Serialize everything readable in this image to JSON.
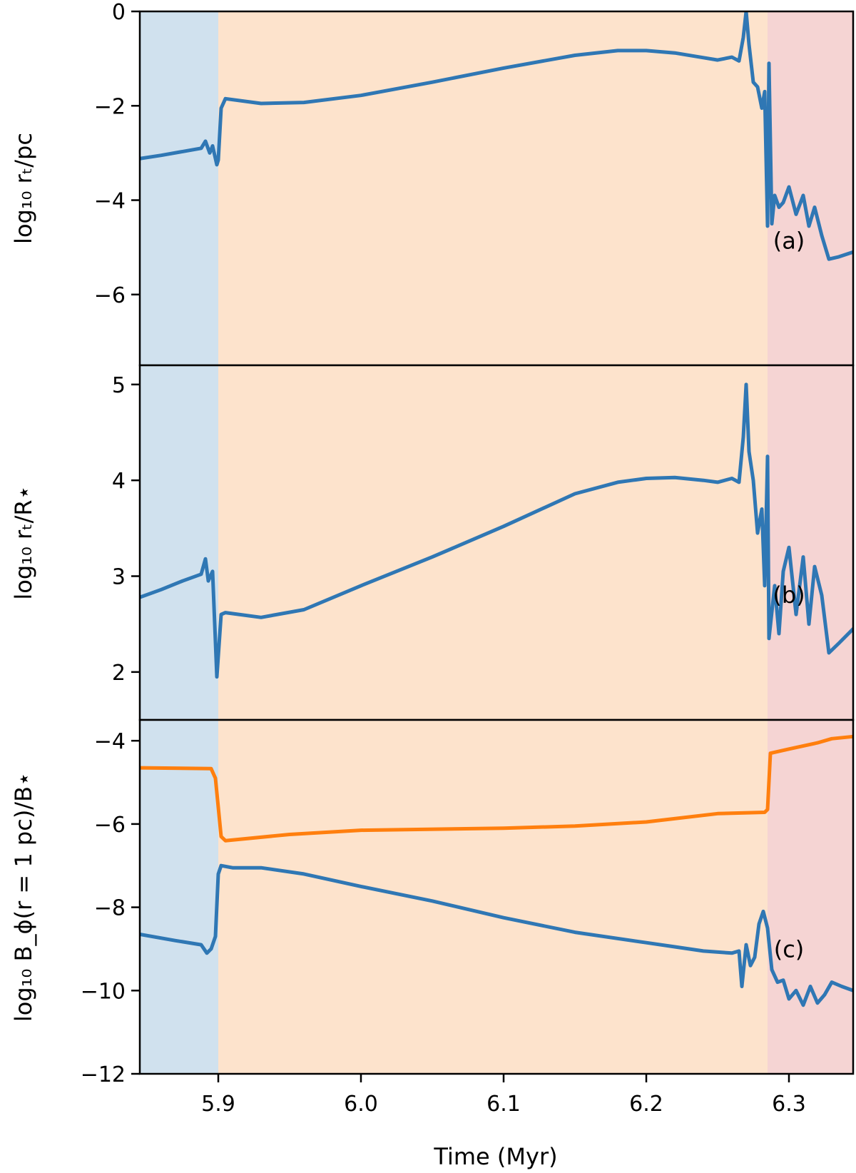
{
  "figure": {
    "xlabel": "Time (Myr)",
    "xlim": [
      5.845,
      6.345
    ],
    "xticks": [
      5.9,
      6.0,
      6.1,
      6.2,
      6.3
    ],
    "xtick_labels": [
      "5.9",
      "6.0",
      "6.1",
      "6.2",
      "6.3"
    ],
    "shaded_regions": [
      {
        "x0": 5.845,
        "x1": 5.9,
        "color": "#d0e1ee"
      },
      {
        "x0": 5.9,
        "x1": 6.285,
        "color": "#fde3cc"
      },
      {
        "x0": 6.285,
        "x1": 6.345,
        "color": "#f5d4d3"
      }
    ]
  },
  "chart_data": [
    {
      "type": "line",
      "panel_label": "(a)",
      "ylabel": "log₁₀ rₜ/pc",
      "ylim": [
        -7.5,
        0
      ],
      "yticks": [
        0,
        -2,
        -4,
        -6
      ],
      "ytick_labels": [
        "0",
        "−2",
        "−4",
        "−6"
      ],
      "series": [
        {
          "color": "#2f77b4",
          "points": [
            [
              5.845,
              -3.12
            ],
            [
              5.86,
              -3.05
            ],
            [
              5.875,
              -2.97
            ],
            [
              5.888,
              -2.9
            ],
            [
              5.891,
              -2.75
            ],
            [
              5.894,
              -3.0
            ],
            [
              5.896,
              -2.85
            ],
            [
              5.899,
              -3.25
            ],
            [
              5.9,
              -3.15
            ],
            [
              5.902,
              -2.05
            ],
            [
              5.905,
              -1.85
            ],
            [
              5.93,
              -1.95
            ],
            [
              5.96,
              -1.93
            ],
            [
              6.0,
              -1.78
            ],
            [
              6.05,
              -1.5
            ],
            [
              6.1,
              -1.2
            ],
            [
              6.15,
              -0.93
            ],
            [
              6.18,
              -0.83
            ],
            [
              6.2,
              -0.83
            ],
            [
              6.22,
              -0.88
            ],
            [
              6.24,
              -0.98
            ],
            [
              6.25,
              -1.03
            ],
            [
              6.26,
              -0.97
            ],
            [
              6.265,
              -1.05
            ],
            [
              6.268,
              -0.55
            ],
            [
              6.27,
              0.0
            ],
            [
              6.272,
              -0.7
            ],
            [
              6.275,
              -1.5
            ],
            [
              6.278,
              -1.6
            ],
            [
              6.281,
              -2.05
            ],
            [
              6.283,
              -1.7
            ],
            [
              6.285,
              -4.55
            ],
            [
              6.286,
              -1.1
            ],
            [
              6.288,
              -4.5
            ],
            [
              6.29,
              -3.9
            ],
            [
              6.293,
              -4.15
            ],
            [
              6.296,
              -4.05
            ],
            [
              6.3,
              -3.72
            ],
            [
              6.305,
              -4.3
            ],
            [
              6.31,
              -3.9
            ],
            [
              6.314,
              -4.55
            ],
            [
              6.318,
              -4.15
            ],
            [
              6.323,
              -4.75
            ],
            [
              6.328,
              -5.25
            ],
            [
              6.335,
              -5.2
            ],
            [
              6.345,
              -5.1
            ]
          ]
        }
      ]
    },
    {
      "type": "line",
      "panel_label": "(b)",
      "ylabel": "log₁₀ rₜ/R⋆",
      "ylim": [
        1.5,
        5.2
      ],
      "yticks": [
        2,
        3,
        4,
        5
      ],
      "ytick_labels": [
        "2",
        "3",
        "4",
        "5"
      ],
      "series": [
        {
          "color": "#2f77b4",
          "points": [
            [
              5.845,
              2.78
            ],
            [
              5.86,
              2.86
            ],
            [
              5.875,
              2.95
            ],
            [
              5.888,
              3.02
            ],
            [
              5.891,
              3.18
            ],
            [
              5.893,
              2.95
            ],
            [
              5.896,
              3.05
            ],
            [
              5.899,
              1.95
            ],
            [
              5.902,
              2.6
            ],
            [
              5.905,
              2.62
            ],
            [
              5.93,
              2.57
            ],
            [
              5.96,
              2.65
            ],
            [
              6.0,
              2.9
            ],
            [
              6.05,
              3.2
            ],
            [
              6.1,
              3.52
            ],
            [
              6.15,
              3.86
            ],
            [
              6.18,
              3.98
            ],
            [
              6.2,
              4.02
            ],
            [
              6.22,
              4.03
            ],
            [
              6.24,
              4.0
            ],
            [
              6.25,
              3.98
            ],
            [
              6.26,
              4.02
            ],
            [
              6.265,
              3.98
            ],
            [
              6.268,
              4.45
            ],
            [
              6.27,
              5.0
            ],
            [
              6.272,
              4.3
            ],
            [
              6.275,
              4.0
            ],
            [
              6.278,
              3.45
            ],
            [
              6.281,
              3.7
            ],
            [
              6.283,
              2.9
            ],
            [
              6.285,
              4.25
            ],
            [
              6.286,
              2.35
            ],
            [
              6.29,
              2.9
            ],
            [
              6.293,
              2.4
            ],
            [
              6.296,
              3.05
            ],
            [
              6.3,
              3.3
            ],
            [
              6.305,
              2.6
            ],
            [
              6.31,
              3.2
            ],
            [
              6.314,
              2.5
            ],
            [
              6.318,
              3.1
            ],
            [
              6.323,
              2.8
            ],
            [
              6.328,
              2.2
            ],
            [
              6.335,
              2.3
            ],
            [
              6.345,
              2.45
            ]
          ]
        }
      ]
    },
    {
      "type": "line",
      "panel_label": "(c)",
      "ylabel": "log₁₀ B_ϕ(r = 1 pc)/B⋆",
      "ylim": [
        -12,
        -3.5
      ],
      "yticks": [
        -4,
        -6,
        -8,
        -10,
        -12
      ],
      "ytick_labels": [
        "−4",
        "−6",
        "−8",
        "−10",
        "−12"
      ],
      "series": [
        {
          "color": "#ff7f0e",
          "points": [
            [
              5.845,
              -4.65
            ],
            [
              5.895,
              -4.67
            ],
            [
              5.898,
              -4.9
            ],
            [
              5.9,
              -5.6
            ],
            [
              5.902,
              -6.3
            ],
            [
              5.905,
              -6.4
            ],
            [
              5.95,
              -6.25
            ],
            [
              6.0,
              -6.15
            ],
            [
              6.1,
              -6.1
            ],
            [
              6.15,
              -6.05
            ],
            [
              6.2,
              -5.95
            ],
            [
              6.25,
              -5.75
            ],
            [
              6.283,
              -5.72
            ],
            [
              6.285,
              -5.65
            ],
            [
              6.287,
              -4.3
            ],
            [
              6.3,
              -4.2
            ],
            [
              6.32,
              -4.05
            ],
            [
              6.33,
              -3.95
            ],
            [
              6.345,
              -3.9
            ]
          ]
        },
        {
          "color": "#2f77b4",
          "points": [
            [
              5.845,
              -8.65
            ],
            [
              5.87,
              -8.8
            ],
            [
              5.888,
              -8.9
            ],
            [
              5.892,
              -9.1
            ],
            [
              5.895,
              -9.0
            ],
            [
              5.898,
              -8.7
            ],
            [
              5.9,
              -7.2
            ],
            [
              5.902,
              -7.0
            ],
            [
              5.91,
              -7.05
            ],
            [
              5.93,
              -7.05
            ],
            [
              5.96,
              -7.2
            ],
            [
              6.0,
              -7.5
            ],
            [
              6.05,
              -7.85
            ],
            [
              6.1,
              -8.25
            ],
            [
              6.15,
              -8.6
            ],
            [
              6.2,
              -8.85
            ],
            [
              6.22,
              -8.95
            ],
            [
              6.24,
              -9.05
            ],
            [
              6.26,
              -9.1
            ],
            [
              6.265,
              -9.05
            ],
            [
              6.267,
              -9.9
            ],
            [
              6.27,
              -8.9
            ],
            [
              6.273,
              -9.4
            ],
            [
              6.276,
              -9.2
            ],
            [
              6.279,
              -8.4
            ],
            [
              6.282,
              -8.1
            ],
            [
              6.285,
              -8.5
            ],
            [
              6.288,
              -9.5
            ],
            [
              6.292,
              -9.8
            ],
            [
              6.296,
              -9.75
            ],
            [
              6.3,
              -10.2
            ],
            [
              6.305,
              -10.0
            ],
            [
              6.31,
              -10.35
            ],
            [
              6.315,
              -9.9
            ],
            [
              6.32,
              -10.3
            ],
            [
              6.325,
              -10.1
            ],
            [
              6.33,
              -9.8
            ],
            [
              6.337,
              -9.9
            ],
            [
              6.345,
              -10.0
            ]
          ]
        }
      ]
    }
  ]
}
